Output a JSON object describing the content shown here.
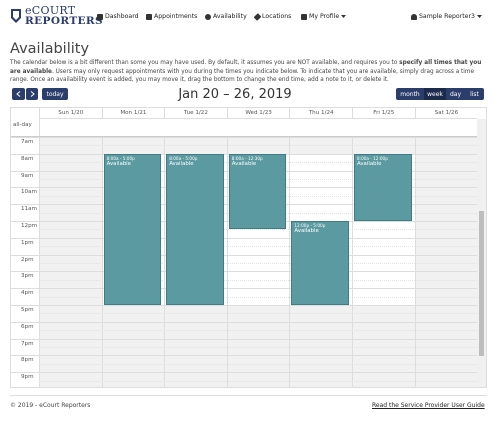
{
  "logo": {
    "line1": "eCOURT",
    "line2": "REPORTERS"
  },
  "nav": {
    "items": [
      "Dashboard",
      "Appointments",
      "Availability",
      "Locations",
      "My Profile"
    ],
    "user": "Sample Reporter3"
  },
  "page": {
    "title": "Availability",
    "intro": [
      "The calendar below is a bit different than some you may have used. By default, it assumes you are NOT available, and requires you to ",
      "specify all times that you are available",
      ". Users may only request appointments with you during the times you indicate below. To indicate that you are available, simply drag across a time range. Once an availability event is added, you may move it, drag the bottom to change the end time, add a note to it, or delete it."
    ]
  },
  "toolbar": {
    "today": "today",
    "range": "Jan 20 – 26, 2019",
    "views": [
      "month",
      "week",
      "day",
      "list"
    ]
  },
  "calendar": {
    "days": [
      "Sun 1/20",
      "Mon 1/21",
      "Tue 1/22",
      "Wed 1/23",
      "Thu 1/24",
      "Fri 1/25",
      "Sat 1/26"
    ],
    "all_day": "all-day",
    "hours": [
      "7am",
      "8am",
      "9am",
      "10am",
      "11am",
      "12pm",
      "1pm",
      "2pm",
      "3pm",
      "4pm",
      "5pm",
      "6pm",
      "7pm",
      "8pm",
      "9pm"
    ],
    "events": [
      {
        "time": "8:00a - 5:00p",
        "title": "Available"
      },
      {
        "time": "8:00a - 5:00p",
        "title": "Available"
      },
      {
        "time": "8:00a - 12:30p",
        "title": "Available"
      },
      {
        "time": "12:00p - 5:00p",
        "title": "Available"
      },
      {
        "time": "8:00a - 12:00p",
        "title": "Available"
      }
    ]
  },
  "footer": {
    "copyright": "© 2019 - eCourt Reporters",
    "link": "Read the Service Provider User Guide"
  }
}
